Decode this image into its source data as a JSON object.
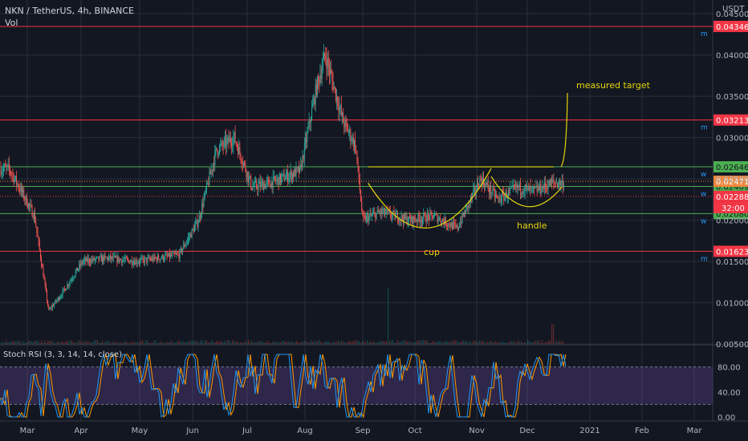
{
  "header": {
    "symbol_line": "NKN / TetherUS, 4h, BINANCE",
    "volume_label": "Vol",
    "currency": "USDT"
  },
  "rsi_panel": {
    "label": "Stoch RSI (3, 3, 14, 14, close)",
    "ticks": [
      "80.00",
      "40.00",
      "0.00"
    ],
    "band_range": [
      20,
      80
    ]
  },
  "annotations": {
    "target": "measured target",
    "cup": "cup",
    "handle": "handle",
    "countdown": "32:00"
  },
  "colors": {
    "background": "#131722",
    "candle_up": "#26a69a",
    "candle_down": "#ef5350",
    "resistance": "#f23645",
    "support": "#4caf50",
    "pattern": "#e6d70a",
    "rsi_k": "#2196f3",
    "rsi_d": "#ff9800",
    "rsi_band": "#7e57c2"
  },
  "chart_data": {
    "type": "candlestick",
    "x_ticks": [
      "Mar",
      "Apr",
      "May",
      "Jun",
      "Jul",
      "Aug",
      "Sep",
      "Oct",
      "Nov",
      "Dec",
      "2021",
      "Feb",
      "Mar"
    ],
    "y_ticks": [
      "0.04500",
      "0.04000",
      "0.03500",
      "0.03000",
      "0.02500",
      "0.02000",
      "0.01500",
      "0.01000",
      "0.00500"
    ],
    "price_range": [
      0.0,
      0.046
    ],
    "price_path": [
      {
        "t": "Feb 20",
        "price": 0.0262
      },
      {
        "t": "Mar 5",
        "price": 0.0205
      },
      {
        "t": "Mar 13",
        "price": 0.009
      },
      {
        "t": "Mar 20",
        "price": 0.011
      },
      {
        "t": "Apr 1",
        "price": 0.015
      },
      {
        "t": "Apr 15",
        "price": 0.0154
      },
      {
        "t": "May 1",
        "price": 0.015
      },
      {
        "t": "May 25",
        "price": 0.0158
      },
      {
        "t": "Jun 5",
        "price": 0.02
      },
      {
        "t": "Jun 15",
        "price": 0.0285
      },
      {
        "t": "Jun 25",
        "price": 0.03
      },
      {
        "t": "Jul 5",
        "price": 0.024
      },
      {
        "t": "Jul 15",
        "price": 0.0245
      },
      {
        "t": "Aug 1",
        "price": 0.026
      },
      {
        "t": "Aug 10",
        "price": 0.036
      },
      {
        "t": "Aug 15",
        "price": 0.04
      },
      {
        "t": "Aug 25",
        "price": 0.032
      },
      {
        "t": "Sep 1",
        "price": 0.029
      },
      {
        "t": "Sep 5",
        "price": 0.02
      },
      {
        "t": "Sep 15",
        "price": 0.021
      },
      {
        "t": "Oct 1",
        "price": 0.02
      },
      {
        "t": "Oct 15",
        "price": 0.0205
      },
      {
        "t": "Oct 28",
        "price": 0.019
      },
      {
        "t": "Nov 10",
        "price": 0.025
      },
      {
        "t": "Nov 20",
        "price": 0.0225
      },
      {
        "t": "Dec 1",
        "price": 0.024
      },
      {
        "t": "Dec 10",
        "price": 0.0235
      },
      {
        "t": "Dec 20",
        "price": 0.0245
      }
    ],
    "volume_spikes": [
      {
        "t": "Sep 19",
        "relative": 1.0
      },
      {
        "t": "Dec 20",
        "relative": 0.35
      }
    ],
    "resistance_levels": [
      {
        "price": 0.04346,
        "label": "0.04346",
        "marker": "m"
      },
      {
        "price": 0.03213,
        "label": "0.03213",
        "marker": "m"
      },
      {
        "price": 0.01623,
        "label": "0.01623",
        "marker": "m"
      }
    ],
    "support_levels": [
      {
        "price": 0.02646,
        "label": "0.02646",
        "marker": "w"
      },
      {
        "price": 0.02409,
        "label": "0.02409",
        "marker": "w"
      },
      {
        "price": 0.0208,
        "label": "0.02080",
        "marker": "w"
      }
    ],
    "price_labels": [
      {
        "price": 0.02471,
        "label": "0.02471",
        "color": "#f0883e"
      },
      {
        "price": 0.02288,
        "label": "0.02288",
        "color": "#f23645"
      }
    ],
    "cup_handle": {
      "rim_price": 0.02646,
      "cup_bottom_price": 0.0155,
      "handle_bottom_price": 0.0216,
      "target_price": 0.0354,
      "rim_start": "Sep 8",
      "target_date": "Dec 22"
    }
  }
}
